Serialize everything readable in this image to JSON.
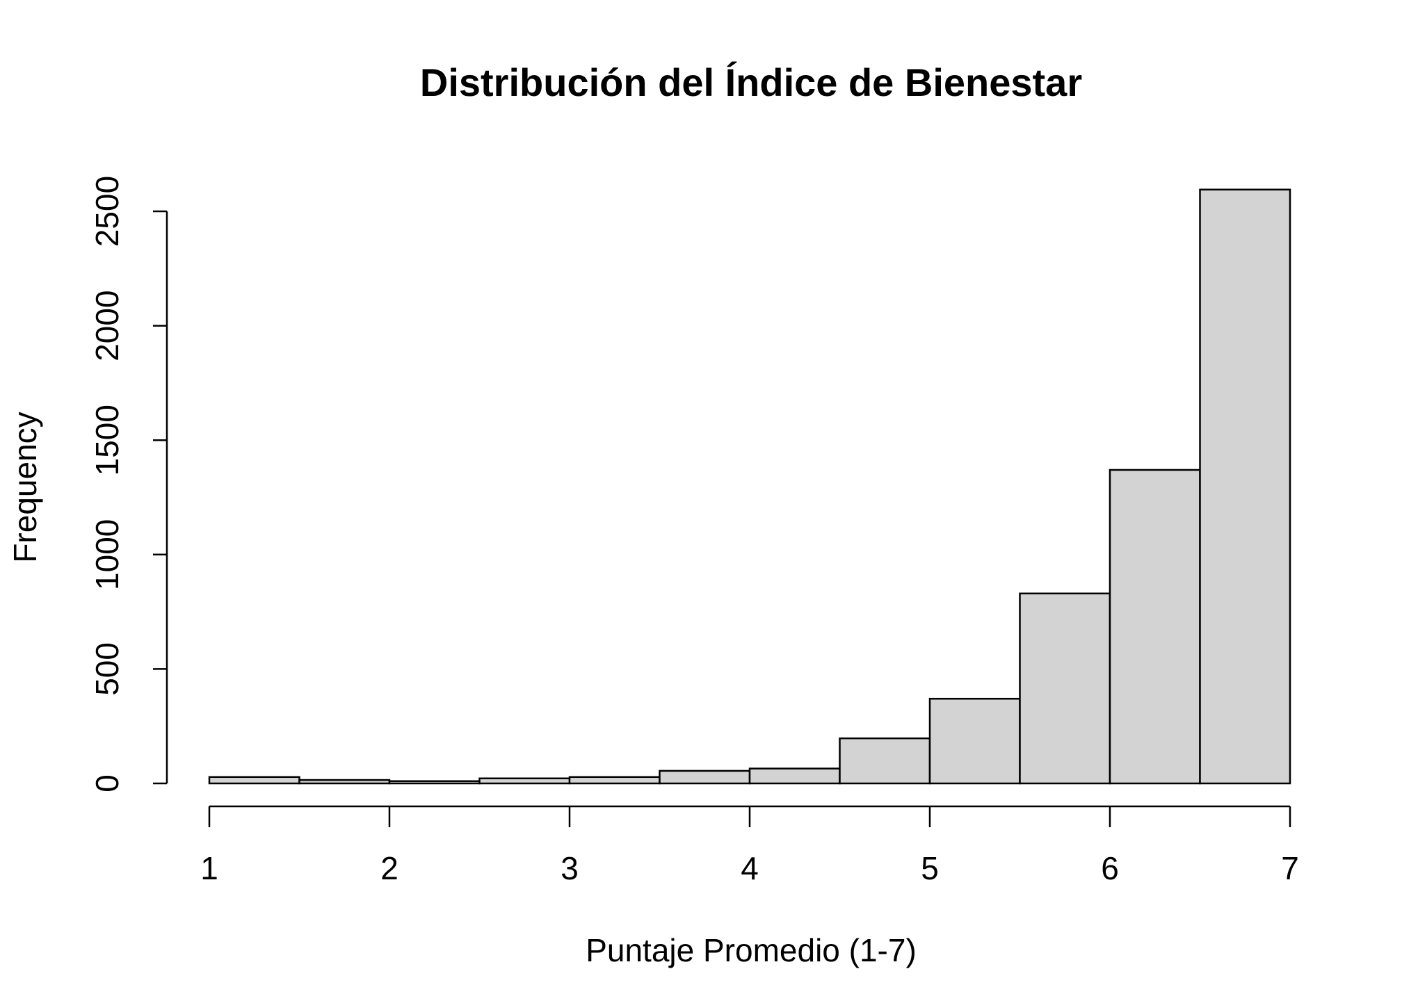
{
  "chart_data": {
    "type": "bar",
    "title": "Distribución del Índice de Bienestar",
    "xlabel": "Puntaje Promedio (1-7)",
    "ylabel": "Frequency",
    "bins": [
      {
        "start": 1.0,
        "end": 1.5,
        "count": 28
      },
      {
        "start": 1.5,
        "end": 2.0,
        "count": 15
      },
      {
        "start": 2.0,
        "end": 2.5,
        "count": 10
      },
      {
        "start": 2.5,
        "end": 3.0,
        "count": 22
      },
      {
        "start": 3.0,
        "end": 3.5,
        "count": 28
      },
      {
        "start": 3.5,
        "end": 4.0,
        "count": 55
      },
      {
        "start": 4.0,
        "end": 4.5,
        "count": 65
      },
      {
        "start": 4.5,
        "end": 5.0,
        "count": 197
      },
      {
        "start": 5.0,
        "end": 5.5,
        "count": 370
      },
      {
        "start": 5.5,
        "end": 6.0,
        "count": 830
      },
      {
        "start": 6.0,
        "end": 6.5,
        "count": 1370
      },
      {
        "start": 6.5,
        "end": 7.0,
        "count": 2595
      }
    ],
    "xlim": [
      1,
      7
    ],
    "ylim": [
      0,
      2600
    ],
    "x_ticks": [
      1,
      2,
      3,
      4,
      5,
      6,
      7
    ],
    "x_tick_labels": [
      "1",
      "2",
      "3",
      "4",
      "5",
      "6",
      "7"
    ],
    "y_ticks": [
      0,
      500,
      1000,
      1500,
      2000,
      2500
    ],
    "y_tick_labels": [
      "0",
      "500",
      "1000",
      "1500",
      "2000",
      "2500"
    ],
    "grid": false,
    "colors": {
      "bar_fill": "#d3d3d3",
      "bar_stroke": "#000000"
    }
  }
}
